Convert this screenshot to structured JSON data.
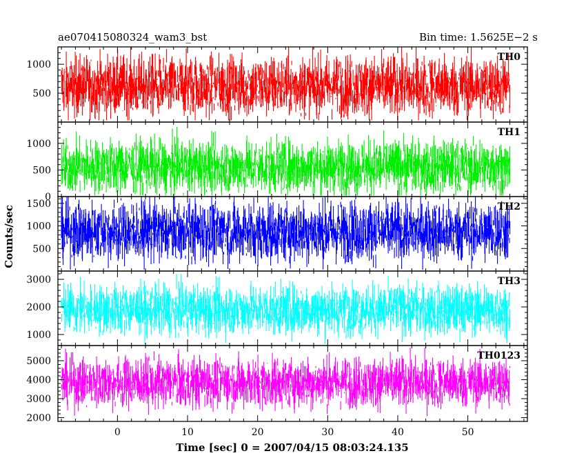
{
  "header": {
    "title": "ae070415080324_wam3_bst",
    "bin_time": "Bin time: 1.5625E−2 s"
  },
  "chart_data": {
    "type": "line",
    "title": "ae070415080324_wam3_bst",
    "subtitle": "Bin time: 1.5625E−2 s",
    "xlabel": "Time [sec] 0 = 2007/04/15 08:03:24.135",
    "ylabel": "Counts/sec",
    "xlim": [
      -8.5,
      58.5
    ],
    "x_data_range": [
      -8,
      56
    ],
    "x_ticks": [
      0,
      10,
      20,
      30,
      40,
      50
    ],
    "x_tick_labels": [
      "0",
      "10",
      "20",
      "30",
      "40",
      "50"
    ],
    "grid": false,
    "panels": [
      {
        "name": "TH0",
        "color": "#ff0000",
        "ylim": [
          0,
          1300
        ],
        "ticks": [
          500,
          1000
        ],
        "tick_labels": [
          "500",
          "1000"
        ],
        "mean": 620,
        "spread": 260,
        "min": 30,
        "max": 1300
      },
      {
        "name": "TH1",
        "color": "#00ee00",
        "ylim": [
          0,
          1400
        ],
        "ticks": [
          0,
          500,
          1000
        ],
        "tick_labels": [
          "0",
          "500",
          "1000"
        ],
        "mean": 560,
        "spread": 250,
        "min": 20,
        "max": 1380
      },
      {
        "name": "TH2",
        "color": "#0000ff",
        "ylim": [
          0,
          1650
        ],
        "ticks": [
          500,
          1000,
          1500
        ],
        "tick_labels": [
          "500",
          "1000",
          "1500"
        ],
        "mean": 880,
        "spread": 330,
        "min": 30,
        "max": 1650
      },
      {
        "name": "TH3",
        "color": "#00ffff",
        "ylim": [
          600,
          3300
        ],
        "ticks": [
          1000,
          2000,
          3000
        ],
        "tick_labels": [
          "1000",
          "2000",
          "3000"
        ],
        "mean": 1900,
        "spread": 450,
        "min": 650,
        "max": 3200
      },
      {
        "name": "TH0123",
        "color": "#ff00ff",
        "ylim": [
          1800,
          5800
        ],
        "ticks": [
          2000,
          3000,
          4000,
          5000
        ],
        "tick_labels": [
          "2000",
          "3000",
          "4000",
          "5000"
        ],
        "mean": 3850,
        "spread": 650,
        "min": 1800,
        "max": 5800
      }
    ]
  }
}
